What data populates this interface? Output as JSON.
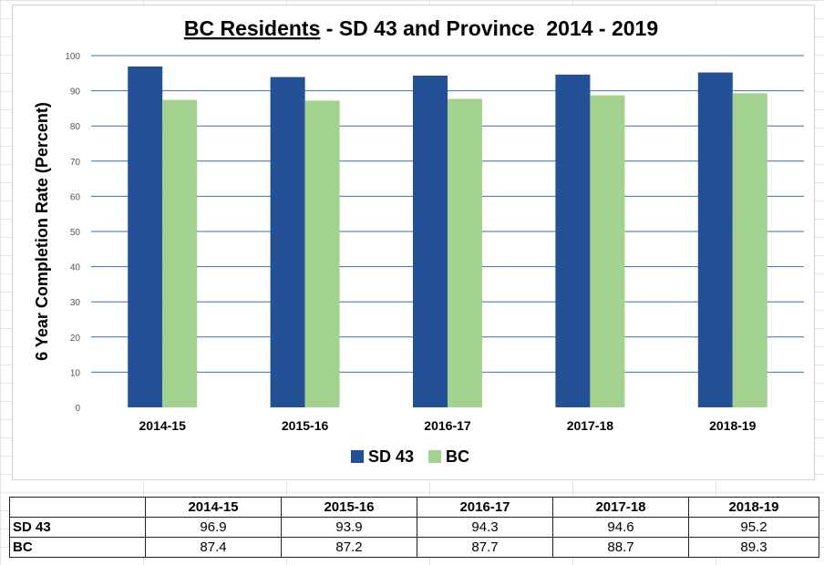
{
  "chart_data": {
    "type": "bar",
    "title_underlined": "BC Residents",
    "title_rest": " - SD 43 and Province  2014 - 2019",
    "ylabel": "6 Year Completion Rate  (Percent)",
    "xlabel": "",
    "ylim": [
      0,
      100
    ],
    "yticks": [
      0,
      10,
      20,
      30,
      40,
      50,
      60,
      70,
      80,
      90,
      100
    ],
    "grid": true,
    "legend_position": "bottom",
    "categories": [
      "2014-15",
      "2015-16",
      "2016-17",
      "2017-18",
      "2018-19"
    ],
    "series": [
      {
        "name": "SD 43",
        "color": "#245196",
        "values": [
          96.9,
          93.9,
          94.3,
          94.6,
          95.2
        ]
      },
      {
        "name": "BC",
        "color": "#a3d18f",
        "values": [
          87.4,
          87.2,
          87.7,
          88.7,
          89.3
        ]
      }
    ]
  },
  "table": {
    "header": [
      "",
      "2014-15",
      "2015-16",
      "2016-17",
      "2017-18",
      "2018-19"
    ],
    "rows": [
      {
        "label": "SD 43",
        "values": [
          "96.9",
          "93.9",
          "94.3",
          "94.6",
          "95.2"
        ]
      },
      {
        "label": "BC",
        "values": [
          "87.4",
          "87.2",
          "87.7",
          "88.7",
          "89.3"
        ]
      }
    ]
  }
}
